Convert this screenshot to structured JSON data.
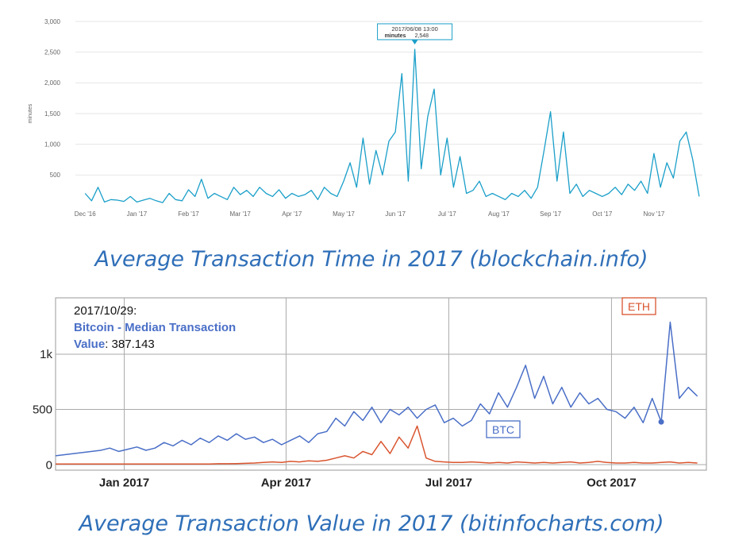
{
  "chart_data": [
    {
      "type": "line",
      "y_label": "minutes",
      "caption": "Average Transaction Time in 2017 (blockchain.info)",
      "tooltip": {
        "date": "2017/06/08 13:00",
        "name": "minutes",
        "value_label": "2,548"
      },
      "series": [
        {
          "color": "#1a9fc9",
          "values": [
            200,
            80,
            300,
            60,
            100,
            90,
            70,
            150,
            60,
            90,
            120,
            80,
            50,
            200,
            100,
            80,
            260,
            150,
            430,
            120,
            200,
            150,
            100,
            300,
            180,
            250,
            150,
            300,
            200,
            150,
            260,
            120,
            200,
            150,
            180,
            250,
            100,
            300,
            200,
            150,
            400,
            700,
            300,
            1100,
            350,
            900,
            500,
            1050,
            1200,
            2150,
            400,
            2548,
            600,
            1450,
            1900,
            500,
            1100,
            300,
            800,
            200,
            250,
            400,
            150,
            200,
            150,
            100,
            200,
            150,
            250,
            120,
            300,
            900,
            1530,
            400,
            1200,
            200,
            350,
            150,
            250,
            200,
            150,
            200,
            300,
            180,
            350,
            250,
            400,
            200,
            850,
            300,
            700,
            450,
            1050,
            1200,
            750,
            150
          ]
        }
      ],
      "xlim": [
        -1.5,
        95.5
      ],
      "xticks": [
        {
          "value": 0,
          "label": "Dec '16"
        },
        {
          "value": 8,
          "label": "Jan '17"
        },
        {
          "value": 16,
          "label": "Feb '17"
        },
        {
          "value": 24,
          "label": "Mar '17"
        },
        {
          "value": 32,
          "label": "Apr '17"
        },
        {
          "value": 40,
          "label": "May '17"
        },
        {
          "value": 48,
          "label": "Jun '17"
        },
        {
          "value": 56,
          "label": "Jul '17"
        },
        {
          "value": 64,
          "label": "Aug '17"
        },
        {
          "value": 72,
          "label": "Sep '17"
        },
        {
          "value": 80,
          "label": "Oct '17"
        },
        {
          "value": 88,
          "label": "Nov '17"
        }
      ],
      "ylim": [
        0,
        3000
      ],
      "yticks": [
        500,
        {
          "value": 1000,
          "label": "1,000"
        },
        {
          "value": 1500,
          "label": "1,500"
        },
        {
          "value": 2000,
          "label": "2,000"
        },
        {
          "value": 2500,
          "label": "2,500"
        },
        {
          "value": 3000,
          "label": "3,000"
        }
      ],
      "grid": true
    },
    {
      "type": "line",
      "caption": "Average Transaction Value in 2017 (bitinfocharts.com)",
      "tooltip": {
        "date": "2017/10/29:",
        "name_lines": [
          "Bitcoin - Median Transaction",
          "Value"
        ],
        "value_text": ": 387.143"
      },
      "series": [
        {
          "name": "BTC",
          "color": "#4a6fc7",
          "values": [
            80,
            90,
            100,
            110,
            120,
            130,
            150,
            120,
            140,
            160,
            130,
            150,
            200,
            170,
            220,
            180,
            240,
            200,
            260,
            220,
            280,
            230,
            250,
            200,
            230,
            180,
            220,
            260,
            200,
            280,
            300,
            420,
            350,
            480,
            400,
            520,
            380,
            500,
            450,
            520,
            420,
            500,
            540,
            380,
            420,
            350,
            400,
            550,
            460,
            650,
            520,
            700,
            900,
            600,
            800,
            550,
            700,
            520,
            650,
            550,
            600,
            500,
            480,
            420,
            520,
            380,
            600,
            387.143,
            1290,
            600,
            700,
            620
          ]
        },
        {
          "name": "ETH",
          "color": "#d9552f",
          "values": [
            5,
            5,
            5,
            5,
            5,
            5,
            5,
            5,
            5,
            5,
            5,
            5,
            5,
            5,
            5,
            5,
            5,
            5,
            8,
            8,
            10,
            12,
            15,
            20,
            25,
            20,
            30,
            25,
            35,
            30,
            40,
            60,
            80,
            60,
            120,
            90,
            210,
            100,
            250,
            150,
            350,
            60,
            30,
            25,
            20,
            20,
            25,
            20,
            15,
            20,
            15,
            25,
            20,
            15,
            20,
            15,
            20,
            25,
            15,
            20,
            30,
            20,
            15,
            15,
            20,
            15,
            15,
            20,
            25,
            15,
            20,
            15
          ]
        }
      ],
      "xlim": [
        0,
        72
      ],
      "xticks": [
        {
          "value": 7.6,
          "label": "Jan 2017"
        },
        {
          "value": 25.5,
          "label": "Apr 2017"
        },
        {
          "value": 43.5,
          "label": "Jul 2017"
        },
        {
          "value": 61.5,
          "label": "Oct 2017"
        }
      ],
      "ylim": [
        -50,
        1510
      ],
      "yticks": [
        0,
        500,
        {
          "value": 1000,
          "label": "1k"
        }
      ],
      "grid": true
    }
  ]
}
